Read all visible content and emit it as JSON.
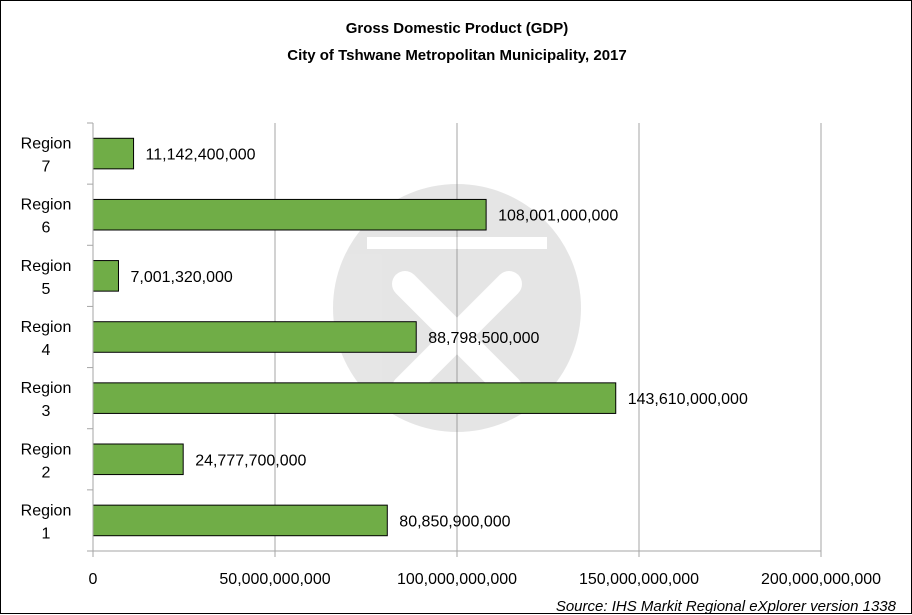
{
  "chart_data": {
    "type": "bar",
    "orientation": "horizontal",
    "title": "Gross Domestic Product (GDP)",
    "subtitle": "City of Tshwane Metropolitan Municipality, 2017",
    "categories": [
      [
        "Region",
        "1"
      ],
      [
        "Region",
        "2"
      ],
      [
        "Region",
        "3"
      ],
      [
        "Region",
        "4"
      ],
      [
        "Region",
        "5"
      ],
      [
        "Region",
        "6"
      ],
      [
        "Region",
        "7"
      ]
    ],
    "values": [
      80850900000,
      24777700000,
      143610000000,
      88798500000,
      7001320000,
      108001000000,
      11142400000
    ],
    "data_labels": [
      "80,850,900,000",
      "24,777,700,000",
      "143,610,000,000",
      "88,798,500,000",
      "7,001,320,000",
      "108,001,000,000",
      "11,142,400,000"
    ],
    "xlim": [
      0,
      200000000000
    ],
    "x_ticks": [
      0,
      50000000000,
      100000000000,
      150000000000,
      200000000000
    ],
    "x_tick_labels": [
      "0",
      "50,000,000,000",
      "100,000,000,000",
      "150,000,000,000",
      "200,000,000,000"
    ],
    "grid": "vertical",
    "bar_color": "#70ad47",
    "xlabel": "",
    "ylabel": ""
  },
  "source": "Source: IHS Markit Regional eXplorer version 1338"
}
